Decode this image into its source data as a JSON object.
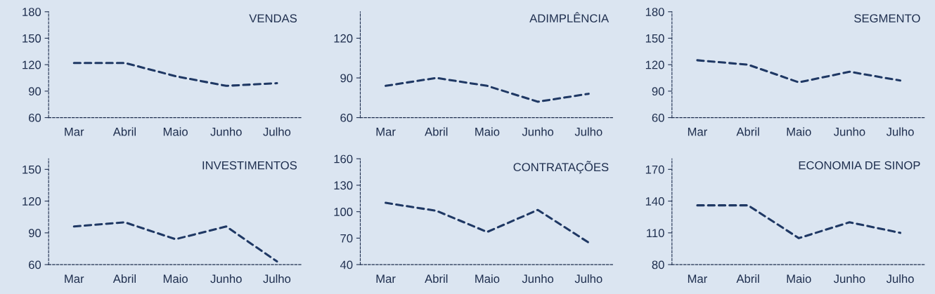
{
  "chart_data": [
    {
      "type": "line",
      "title": "VENDAS",
      "categories": [
        "Mar",
        "Abril",
        "Maio",
        "Junho",
        "Julho"
      ],
      "values": [
        122,
        122,
        107,
        96,
        99
      ],
      "color": "#1f3864",
      "line_style": "dashed",
      "ylim": [
        60,
        180
      ],
      "yticks": [
        60,
        90,
        120,
        150,
        180
      ]
    },
    {
      "type": "line",
      "title": "ADIMPLÊNCIA",
      "categories": [
        "Mar",
        "Abril",
        "Maio",
        "Junho",
        "Julho"
      ],
      "values": [
        84,
        90,
        84,
        72,
        78
      ],
      "color": "#1f3864",
      "line_style": "dashed",
      "ylim": [
        60,
        140
      ],
      "yticks": [
        60,
        90,
        120
      ]
    },
    {
      "type": "line",
      "title": "SEGMENTO",
      "categories": [
        "Mar",
        "Abril",
        "Maio",
        "Junho",
        "Julho"
      ],
      "values": [
        125,
        120,
        100,
        112,
        102
      ],
      "color": "#1f3864",
      "line_style": "dashed",
      "ylim": [
        60,
        180
      ],
      "yticks": [
        60,
        90,
        120,
        150,
        180
      ]
    },
    {
      "type": "line",
      "title": "INVESTIMENTOS",
      "categories": [
        "Mar",
        "Abril",
        "Maio",
        "Junho",
        "Julho"
      ],
      "values": [
        96,
        100,
        84,
        96,
        63
      ],
      "color": "#1f3864",
      "line_style": "dashed",
      "ylim": [
        60,
        160
      ],
      "yticks": [
        60,
        90,
        120,
        150
      ]
    },
    {
      "type": "line",
      "title": "CONTRATAÇÕES",
      "categories": [
        "Mar",
        "Abril",
        "Maio",
        "Junho",
        "Julho"
      ],
      "values": [
        110,
        101,
        77,
        102,
        65
      ],
      "color": "#1f3864",
      "line_style": "dashed",
      "ylim": [
        40,
        160
      ],
      "yticks": [
        40,
        70,
        100,
        130,
        160
      ]
    },
    {
      "type": "line",
      "title": "ECONOMIA DE SINOP",
      "categories": [
        "Mar",
        "Abril",
        "Maio",
        "Junho",
        "Julho"
      ],
      "values": [
        136,
        136,
        105,
        120,
        110
      ],
      "color": "#1f3864",
      "line_style": "dashed",
      "ylim": [
        80,
        180
      ],
      "yticks": [
        80,
        110,
        140,
        170
      ]
    }
  ]
}
